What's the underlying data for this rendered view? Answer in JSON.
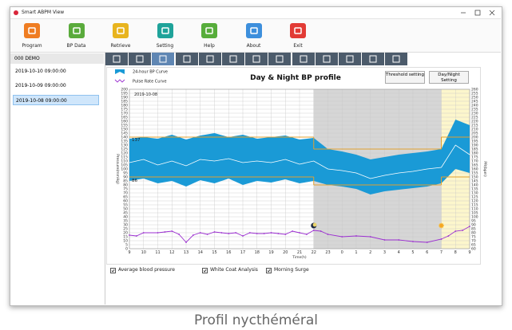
{
  "window": {
    "title": "Smart ABPM View"
  },
  "toolbar": [
    "Program",
    "BP Data",
    "Retrieve",
    "Setting",
    "Help",
    "About",
    "Exit"
  ],
  "sidebar": {
    "header": "000 DEMO",
    "items": [
      "2019-10-10 09:00:00",
      "2019-10-09 09:00:00",
      "2019-10-08 09:00:00"
    ],
    "selected": 2
  },
  "buttons": [
    "Threshold setting",
    "Day/Night Setting"
  ],
  "checkboxes": [
    "Average blood pressure",
    "White Coat Analysis",
    "Morning Surge"
  ],
  "caption": "Profil nycthéméral",
  "chart_data": {
    "type": "band",
    "title": "Day & Night BP profile",
    "date_label": "2019-10-08",
    "xlabel": "Time(h)",
    "ylabel": "Pressure(mmHg)",
    "y2label": "PR(bpm)",
    "xlim": [
      9,
      33
    ],
    "xticks": [
      9,
      10,
      11,
      12,
      13,
      14,
      15,
      16,
      17,
      18,
      19,
      20,
      21,
      22,
      23,
      {
        "value": 24,
        "label": "0"
      },
      {
        "value": 25,
        "label": "1"
      },
      {
        "value": 26,
        "label": "2"
      },
      {
        "value": 27,
        "label": "3"
      },
      {
        "value": 28,
        "label": "4"
      },
      {
        "value": 29,
        "label": "5"
      },
      {
        "value": 30,
        "label": "6"
      },
      {
        "value": 31,
        "label": "7"
      },
      {
        "value": 32,
        "label": "8"
      },
      {
        "value": 33,
        "label": "9"
      }
    ],
    "ylim": [
      0,
      200
    ],
    "yticks": [
      0,
      5,
      10,
      15,
      20,
      25,
      30,
      35,
      40,
      45,
      50,
      55,
      60,
      65,
      70,
      75,
      80,
      85,
      90,
      95,
      100,
      105,
      110,
      115,
      120,
      125,
      130,
      135,
      140,
      145,
      150,
      155,
      160,
      165,
      170,
      175,
      180,
      185,
      190,
      195,
      200
    ],
    "y2lim": [
      60,
      260
    ],
    "y2ticks": [
      60,
      65,
      70,
      75,
      80,
      85,
      90,
      95,
      100,
      105,
      110,
      115,
      120,
      125,
      130,
      135,
      140,
      145,
      150,
      155,
      160,
      165,
      170,
      175,
      180,
      185,
      190,
      195,
      200,
      205,
      210,
      215,
      220,
      225,
      230,
      235,
      240,
      245,
      250,
      255,
      260
    ],
    "grid": true,
    "night": [
      22,
      31
    ],
    "morning": [
      31,
      33
    ],
    "night_color": "#d6d6d6",
    "morning_color": "#fcf6cc",
    "bp": {
      "name": "24-hour BP Curve",
      "color": "#1a9ad6",
      "x": [
        9,
        10,
        11,
        12,
        13,
        14,
        15,
        16,
        17,
        18,
        19,
        20,
        21,
        22,
        23,
        24,
        25,
        26,
        27,
        28,
        29,
        30,
        31,
        32,
        33
      ],
      "upper": [
        138,
        140,
        138,
        143,
        137,
        142,
        145,
        140,
        143,
        138,
        140,
        142,
        137,
        139,
        125,
        122,
        118,
        112,
        115,
        118,
        120,
        122,
        125,
        162,
        155
      ],
      "lower": [
        85,
        88,
        82,
        85,
        78,
        86,
        82,
        88,
        80,
        85,
        83,
        87,
        82,
        85,
        80,
        78,
        75,
        68,
        72,
        74,
        76,
        78,
        82,
        100,
        95
      ],
      "mean": [
        108,
        112,
        105,
        110,
        104,
        112,
        110,
        113,
        108,
        110,
        108,
        112,
        106,
        110,
        100,
        98,
        95,
        88,
        92,
        95,
        97,
        100,
        102,
        130,
        118
      ]
    },
    "pulse": {
      "name": "Pulse Rate Curve",
      "color": "#9b2fd0",
      "axis": "y2",
      "x": [
        9,
        9.5,
        10,
        11,
        11.5,
        12,
        12.5,
        13,
        13.5,
        14,
        14.5,
        15,
        15.5,
        16,
        16.5,
        17,
        17.5,
        18,
        18.5,
        19,
        19.5,
        20,
        20.5,
        21,
        21.5,
        22,
        22.5,
        23,
        24,
        25,
        26,
        27,
        28,
        29,
        30,
        31,
        31.5,
        32,
        32.5,
        33
      ],
      "values": [
        77,
        76,
        80,
        80,
        81,
        82,
        78,
        68,
        77,
        80,
        78,
        81,
        80,
        79,
        80,
        76,
        80,
        79,
        79,
        80,
        79,
        78,
        82,
        80,
        78,
        83,
        82,
        78,
        75,
        76,
        75,
        71,
        71,
        69,
        68,
        72,
        76,
        82,
        83,
        88
      ]
    },
    "thresholds": {
      "color": "#e0a030",
      "segments": [
        {
          "x": [
            9,
            22
          ],
          "values": [
            140,
            90
          ]
        },
        {
          "x": [
            22,
            31
          ],
          "values": [
            125,
            80
          ]
        },
        {
          "x": [
            31,
            33
          ],
          "values": [
            140,
            90
          ]
        }
      ]
    },
    "average_labels": [
      137,
      86
    ]
  }
}
